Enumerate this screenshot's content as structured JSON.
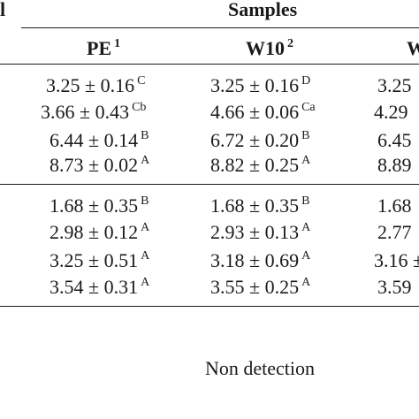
{
  "table": {
    "left_header_fragment": "l",
    "group_header": "Samples",
    "columns": [
      {
        "label": "PE",
        "sup": "1"
      },
      {
        "label": "W10",
        "sup": "2"
      },
      {
        "label": "W",
        "sup": ""
      }
    ],
    "block1": [
      [
        {
          "v": "3.25 ± 0.16",
          "s": "C"
        },
        {
          "v": "3.25 ± 0.16",
          "s": "D"
        },
        {
          "v": "3.25",
          "s": ""
        }
      ],
      [
        {
          "v": "3.66 ± 0.43",
          "s": "Cb"
        },
        {
          "v": "4.66 ± 0.06",
          "s": "Ca"
        },
        {
          "v": "4.29",
          "s": ""
        }
      ],
      [
        {
          "v": "6.44 ± 0.14",
          "s": "B"
        },
        {
          "v": "6.72 ± 0.20",
          "s": "B"
        },
        {
          "v": "6.45",
          "s": ""
        }
      ],
      [
        {
          "v": "8.73 ± 0.02",
          "s": "A"
        },
        {
          "v": "8.82 ± 0.25",
          "s": "A"
        },
        {
          "v": "8.89",
          "s": ""
        }
      ]
    ],
    "block2": [
      [
        {
          "v": "1.68 ± 0.35",
          "s": "B"
        },
        {
          "v": "1.68 ± 0.35",
          "s": "B"
        },
        {
          "v": "1.68",
          "s": ""
        }
      ],
      [
        {
          "v": "2.98 ± 0.12",
          "s": "A"
        },
        {
          "v": "2.93 ± 0.13",
          "s": "A"
        },
        {
          "v": "2.77",
          "s": ""
        }
      ],
      [
        {
          "v": "3.25 ± 0.51",
          "s": "A"
        },
        {
          "v": "3.18 ± 0.69",
          "s": "A"
        },
        {
          "v": "3.16 ±",
          "s": ""
        }
      ],
      [
        {
          "v": "3.54 ± 0.31",
          "s": "A"
        },
        {
          "v": "3.55 ± 0.25",
          "s": "A"
        },
        {
          "v": "3.59",
          "s": ""
        }
      ]
    ],
    "footer_note": "Non detection"
  }
}
